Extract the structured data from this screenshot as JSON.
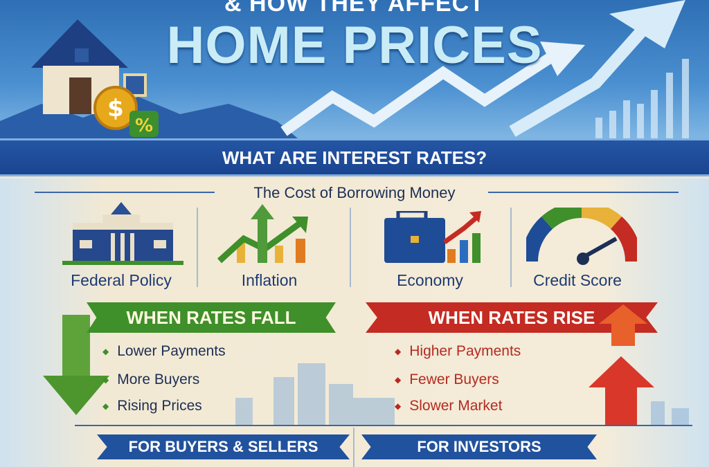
{
  "header": {
    "title_line1": "& HOW THEY AFFECT",
    "title_line2": "HOME PRICES",
    "percent_symbol": "%",
    "dollar_symbol": "$"
  },
  "section": {
    "title": "WHAT ARE INTEREST RATES?",
    "subtitle": "The Cost of Borrowing Money"
  },
  "factors": [
    {
      "label": "Federal Policy",
      "icon": "federal-building-icon"
    },
    {
      "label": "Inflation",
      "icon": "rising-chart-icon"
    },
    {
      "label": "Economy",
      "icon": "briefcase-chart-icon"
    },
    {
      "label": "Credit Score",
      "icon": "gauge-icon"
    }
  ],
  "fall": {
    "title": "WHEN RATES FALL",
    "items": [
      "Lower Payments",
      "More Buyers",
      "Rising Prices"
    ],
    "color": "#3f8f2a"
  },
  "rise": {
    "title": "WHEN RATES RISE",
    "items": [
      "Higher Payments",
      "Fewer Buyers",
      "Slower Market"
    ],
    "color": "#c42b22"
  },
  "bottom": {
    "buyers_sellers": "FOR BUYERS & SELLERS",
    "investors": "FOR INVESTORS"
  }
}
